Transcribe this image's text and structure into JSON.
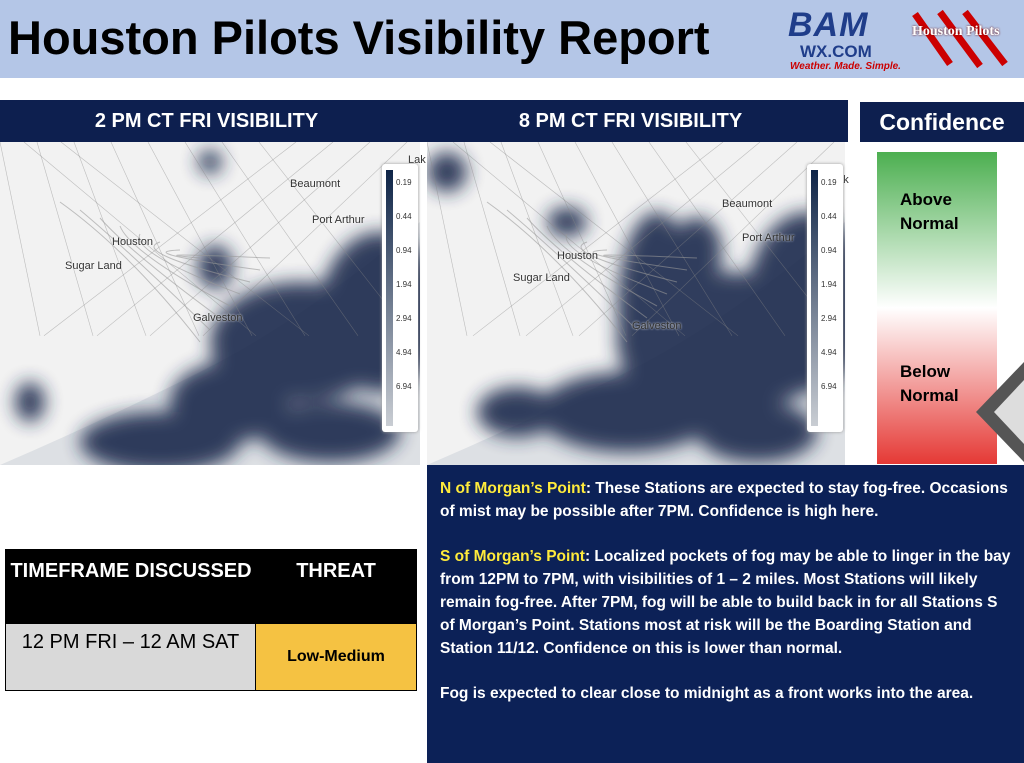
{
  "header": {
    "title": "Houston Pilots Visibility Report",
    "logo_main": "BAM",
    "logo_sub": "WX.COM",
    "logo_tagline": "Weather. Made. Simple.",
    "logo_partner": "Houston Pilots"
  },
  "maps": [
    {
      "title": "2 PM CT FRI VISIBILITY",
      "labels": [
        "Beaumont",
        "Port Arthur",
        "Houston",
        "Sugar Land",
        "Galveston",
        "Lak"
      ]
    },
    {
      "title": "8 PM CT FRI VISIBILITY",
      "labels": [
        "Beaumont",
        "Port Arthur",
        "Houston",
        "Sugar Land",
        "Galveston",
        "Lak"
      ]
    }
  ],
  "legend": [
    "0.19",
    "0.44",
    "0.94",
    "1.94",
    "2.94",
    "4.94",
    "6.94"
  ],
  "confidence": {
    "title": "Confidence",
    "above": "Above Normal",
    "below": "Below Normal"
  },
  "table": {
    "headers": [
      "TIMEFRAME DISCUSSED",
      "THREAT"
    ],
    "rows": [
      [
        "12 PM FRI – 12 AM SAT",
        "Low-Medium"
      ]
    ]
  },
  "discussion": [
    {
      "lead": "N of Morgan’s Point",
      "text": ": These Stations are expected to stay fog-free. Occasions of mist may be possible after 7PM. Confidence is high here."
    },
    {
      "lead": "S of Morgan’s Point",
      "text": ": Localized pockets of fog may be able to linger in the bay from 12PM to 7PM, with visibilities of 1 – 2 miles. Most Stations will likely remain fog-free. After 7PM, fog will be able to build back in for all Stations S of Morgan’s Point. Stations most at risk will be the Boarding Station and Station 11/12. Confidence on this is lower than normal."
    },
    {
      "text": "Fog is expected to clear close to midnight as a front works into the area."
    }
  ]
}
